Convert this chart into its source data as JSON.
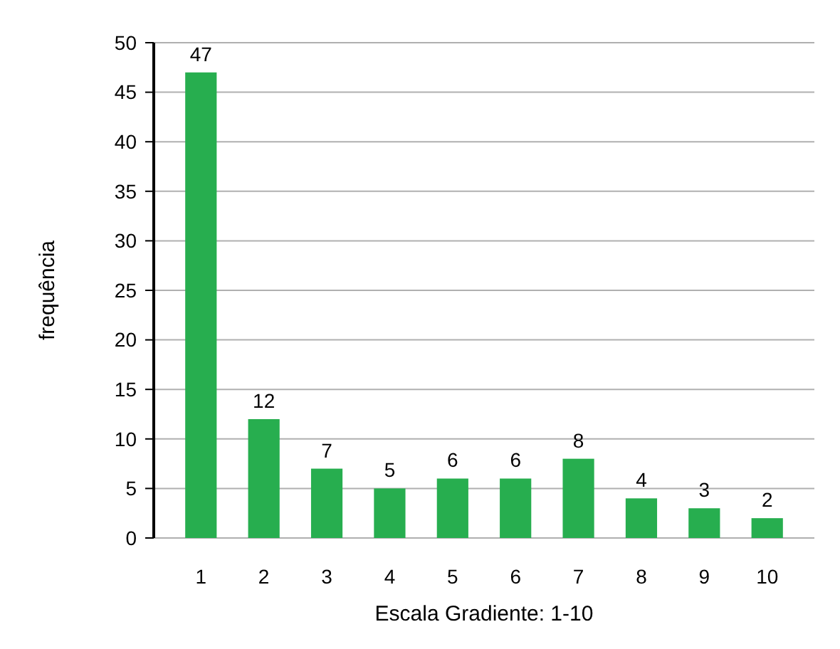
{
  "chart_data": {
    "type": "bar",
    "xlabel": "Escala Gradiente: 1-10",
    "ylabel": "frequência",
    "categories": [
      "1",
      "2",
      "3",
      "4",
      "5",
      "6",
      "7",
      "8",
      "9",
      "10"
    ],
    "values": [
      47,
      12,
      7,
      5,
      6,
      6,
      8,
      4,
      3,
      2
    ],
    "color": "#27ae4f",
    "ylim": [
      0,
      50
    ],
    "yticks": [
      0,
      5,
      10,
      15,
      20,
      25,
      30,
      35,
      40,
      45,
      50
    ],
    "grid": "y",
    "data_labels": true
  }
}
